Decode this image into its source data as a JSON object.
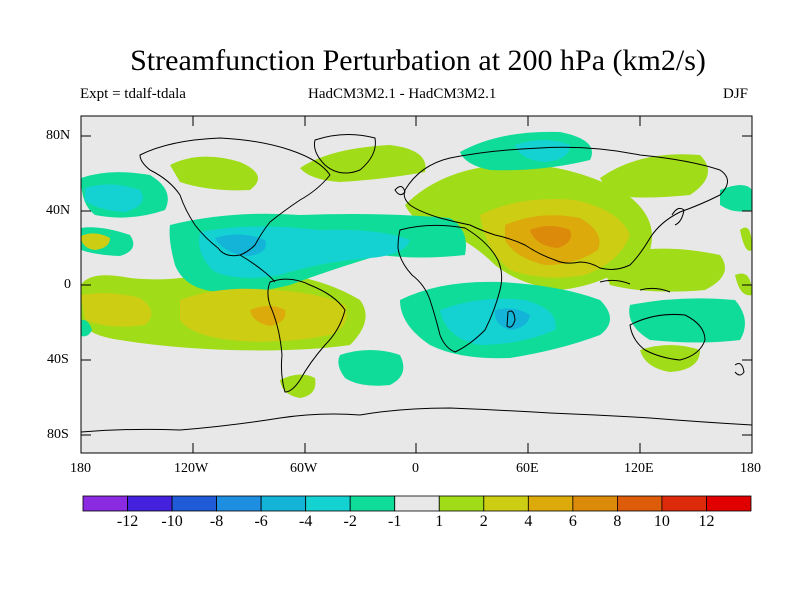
{
  "title": "Streamfunction Perturbation at 200 hPa (km2/s)",
  "experiment": "Expt = tdalf-tdala",
  "model_label": "HadCM3M2.1 - HadCM3M2.1",
  "season": "DJF",
  "lat_labels": [
    "80N",
    "40N",
    "0",
    "40S",
    "80S"
  ],
  "lon_labels": [
    "180",
    "120W",
    "60W",
    "0",
    "60E",
    "120E",
    "180"
  ],
  "colorbar": {
    "labels": [
      "-12",
      "-10",
      "-8",
      "-6",
      "-4",
      "-2",
      "-1",
      "1",
      "2",
      "4",
      "6",
      "8",
      "10",
      "12"
    ],
    "colors": [
      "#8a2be2",
      "#4422dd",
      "#1f5ad7",
      "#1e8ee0",
      "#14b4d8",
      "#14d2d2",
      "#10dc9a",
      "#e8e8e8",
      "#a0dc18",
      "#cdcd14",
      "#dcaa0a",
      "#dc8a0a",
      "#dc5c0a",
      "#dc2a0a",
      "#e00000"
    ]
  }
}
